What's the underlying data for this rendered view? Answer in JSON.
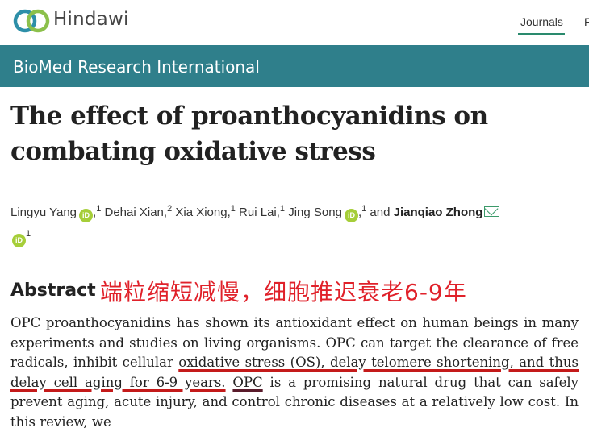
{
  "header": {
    "brand": "Hindawi",
    "nav": [
      "Journals",
      "F"
    ]
  },
  "journal": {
    "name": "BioMed Research International"
  },
  "article": {
    "title": "The effect of proanthocyanidins on combating oxidative stress",
    "authors": [
      {
        "name": "Lingyu Yang",
        "aff": "1",
        "orcid": true
      },
      {
        "name": "Dehai Xian",
        "aff": "2",
        "orcid": false
      },
      {
        "name": "Xia Xiong",
        "aff": "1",
        "orcid": false
      },
      {
        "name": "Rui Lai",
        "aff": "1",
        "orcid": false
      },
      {
        "name": "Jing Song",
        "aff": "1",
        "orcid": true
      },
      {
        "name": "Jianqiao Zhong",
        "aff": "1",
        "orcid": true,
        "corresponding": true
      }
    ],
    "and_word": "and",
    "orcid_label": "iD"
  },
  "abstract": {
    "heading": "Abstract",
    "annotation": "端粒缩短减慢，细胞推迟衰老6-9年",
    "text_1": "OPC proanthocyanidins has shown its antioxidant effect on human beings in many experiments and studies on living organisms. OPC can target the clearance of free radicals, inhibit cellular ",
    "underline_1": "oxidative stress (OS), delay telomere shortening, and thus delay cell aging for 6-9 years.",
    "text_2": " ",
    "underline_2": "OPC",
    "text_3": " is a promising natural drug that can safely prevent aging, acute injury, and control chronic diseases at a relatively low cost. In this review, we"
  }
}
